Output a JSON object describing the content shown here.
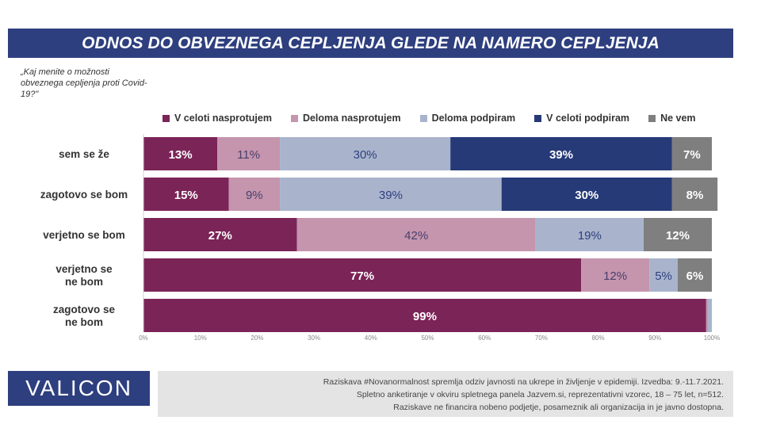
{
  "title": "ODNOS DO OBVEZNEGA CEPLJENJA GLEDE NA NAMERO CEPLJENJA",
  "question": "„Kaj menite o možnosti obveznega cepljenja proti Covid-19?\"",
  "brand": "VALICON",
  "footer": [
    "Raziskava #Novanormalnost spremlja odziv javnosti na ukrepe in življenje v epidemiji. Izvedba: 9.-11.7.2021.",
    "Spletno anketiranje v okviru spletnega panela Jazvem.si, reprezentativni vzorec, 18 – 75 let, n=512.",
    "Raziskave ne financira nobeno podjetje, posameznik ali organizacija in je javno dostopna."
  ],
  "chart_data": {
    "type": "bar",
    "orientation": "horizontal-stacked",
    "categories": [
      "sem se že",
      "zagotovo se bom",
      "verjetno se bom",
      "verjetno se ne bom",
      "zagotovo se ne bom"
    ],
    "series": [
      {
        "name": "V celoti nasprotujem",
        "color": "#7b2457",
        "label_color": "#ffffff",
        "values": [
          13,
          15,
          27,
          77,
          99
        ]
      },
      {
        "name": "Deloma nasprotujem",
        "color": "#c495ad",
        "label_color": "#4a3f6b",
        "values": [
          11,
          9,
          42,
          12,
          0.3
        ]
      },
      {
        "name": "Deloma podpiram",
        "color": "#a9b4cc",
        "label_color": "#2e3f7f",
        "values": [
          30,
          39,
          19,
          5,
          0.7
        ]
      },
      {
        "name": "V celoti podpiram",
        "color": "#263a78",
        "label_color": "#ffffff",
        "values": [
          39,
          30,
          0,
          0,
          0
        ]
      },
      {
        "name": "Ne vem",
        "color": "#7f7f7f",
        "label_color": "#ffffff",
        "values": [
          7,
          8,
          12,
          6,
          0
        ]
      }
    ],
    "labels": [
      [
        "13%",
        "11%",
        "30%",
        "39%",
        "7%"
      ],
      [
        "15%",
        "9%",
        "39%",
        "30%",
        "8%"
      ],
      [
        "27%",
        "42%",
        "19%",
        "",
        "12%"
      ],
      [
        "77%",
        "12%",
        "5%",
        "",
        "6%"
      ],
      [
        "99%",
        "",
        "",
        "",
        ""
      ]
    ],
    "x_ticks": [
      "0%",
      "10%",
      "20%",
      "30%",
      "40%",
      "50%",
      "60%",
      "70%",
      "80%",
      "90%",
      "100%"
    ],
    "xlim": [
      0,
      100
    ],
    "legend_position": "top",
    "grid": false
  }
}
